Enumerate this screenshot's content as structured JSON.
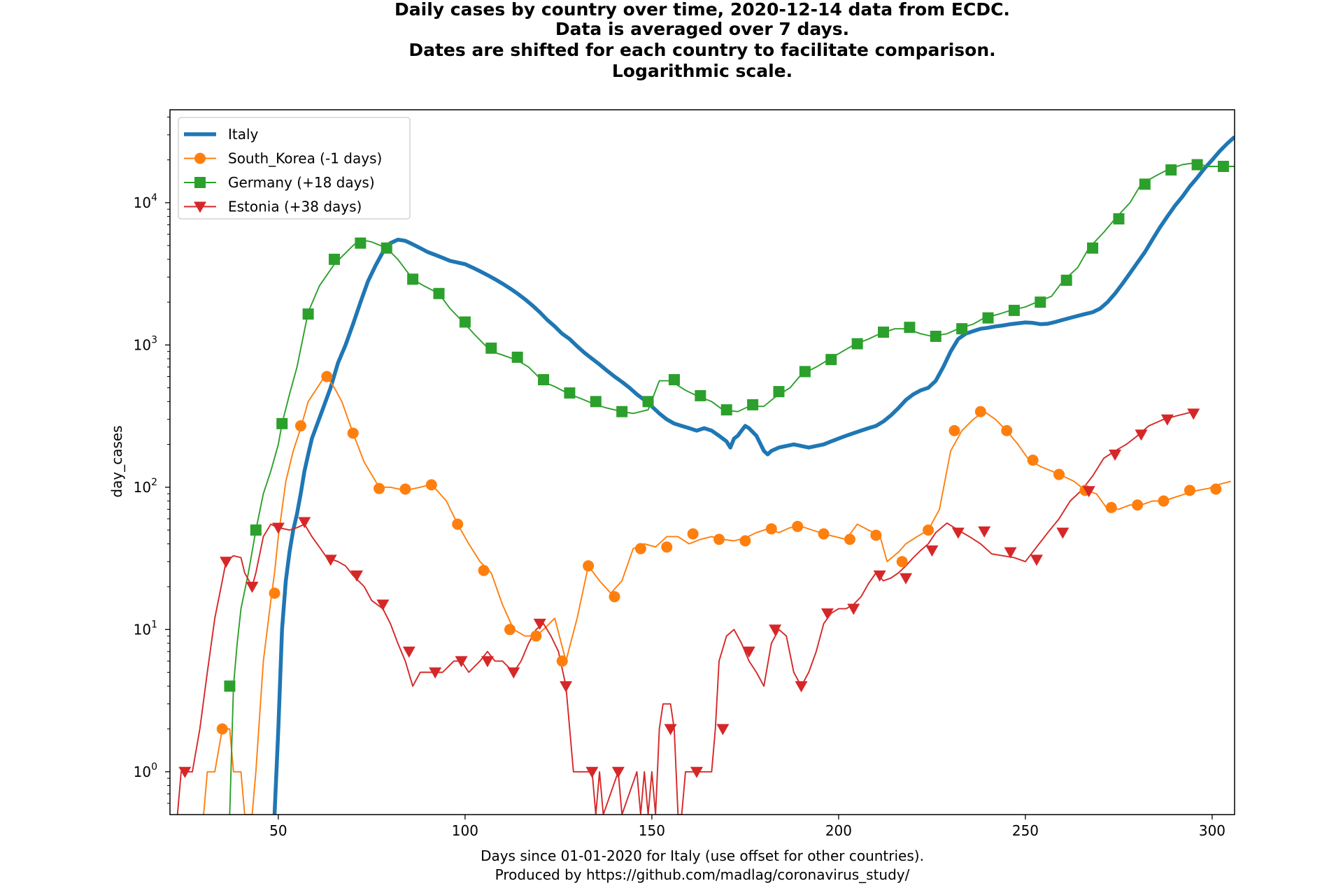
{
  "chart_data": {
    "type": "line",
    "title_lines": [
      "Daily cases by country over time, 2020-12-14 data from ECDC.",
      "Data is averaged over 7 days.",
      "Dates are shifted for each country to facilitate comparison.",
      "Logarithmic scale."
    ],
    "xlabel_lines": [
      "Days since 01-01-2020 for Italy (use offset for other countries).",
      "Produced by https://github.com/madlag/coronavirus_study/"
    ],
    "ylabel": "day_cases",
    "yscale": "log",
    "xlim": [
      21,
      306
    ],
    "ylim": [
      0.5,
      45000
    ],
    "x_ticks": [
      50,
      100,
      150,
      200,
      250,
      300
    ],
    "y_ticks": [
      {
        "value": 1,
        "base": "10",
        "exp": "0"
      },
      {
        "value": 10,
        "base": "10",
        "exp": "1"
      },
      {
        "value": 100,
        "base": "10",
        "exp": "2"
      },
      {
        "value": 1000,
        "base": "10",
        "exp": "3"
      },
      {
        "value": 10000,
        "base": "10",
        "exp": "4"
      }
    ],
    "legend_position": "top-left",
    "series": [
      {
        "name": "Italy",
        "color": "#1f77b4",
        "marker": "none",
        "x": [
          49,
          50,
          51,
          52,
          53,
          54,
          55,
          56,
          57,
          58,
          59,
          60,
          62,
          64,
          66,
          68,
          70,
          72,
          74,
          76,
          78,
          80,
          82,
          84,
          86,
          88,
          90,
          92,
          94,
          96,
          98,
          100,
          102,
          104,
          106,
          108,
          110,
          112,
          114,
          116,
          118,
          120,
          122,
          124,
          126,
          128,
          130,
          132,
          134,
          136,
          138,
          140,
          142,
          144,
          146,
          148,
          150,
          152,
          154,
          156,
          158,
          160,
          162,
          164,
          166,
          168,
          170,
          171,
          172,
          173,
          174,
          175,
          176,
          178,
          180,
          181,
          182,
          184,
          186,
          188,
          190,
          192,
          194,
          196,
          198,
          200,
          202,
          204,
          206,
          208,
          210,
          212,
          214,
          216,
          218,
          220,
          222,
          224,
          226,
          228,
          230,
          232,
          234,
          236,
          238,
          240,
          242,
          244,
          246,
          248,
          250,
          252,
          254,
          256,
          258,
          260,
          262,
          264,
          266,
          268,
          270,
          272,
          274,
          276,
          278,
          280,
          282,
          284,
          286,
          288,
          290,
          292,
          294,
          296,
          298,
          300,
          302,
          304,
          306
        ],
        "values": [
          0.5,
          2,
          10,
          22,
          35,
          50,
          65,
          90,
          130,
          170,
          220,
          260,
          360,
          500,
          750,
          1000,
          1400,
          2000,
          2800,
          3600,
          4500,
          5200,
          5500,
          5400,
          5100,
          4800,
          4500,
          4300,
          4100,
          3900,
          3800,
          3700,
          3500,
          3300,
          3100,
          2900,
          2700,
          2500,
          2300,
          2100,
          1900,
          1700,
          1500,
          1350,
          1200,
          1100,
          980,
          880,
          800,
          730,
          660,
          600,
          550,
          500,
          450,
          410,
          370,
          330,
          300,
          280,
          270,
          260,
          250,
          260,
          250,
          230,
          210,
          190,
          220,
          230,
          250,
          270,
          260,
          230,
          180,
          170,
          180,
          190,
          195,
          200,
          195,
          190,
          195,
          200,
          210,
          220,
          230,
          240,
          250,
          260,
          270,
          290,
          320,
          360,
          410,
          450,
          480,
          500,
          560,
          700,
          900,
          1100,
          1200,
          1250,
          1300,
          1320,
          1350,
          1370,
          1400,
          1420,
          1440,
          1430,
          1400,
          1410,
          1450,
          1500,
          1550,
          1600,
          1650,
          1700,
          1800,
          2000,
          2300,
          2700,
          3200,
          3800,
          4500,
          5500,
          6700,
          8000,
          9500,
          11000,
          13000,
          15000,
          17500,
          20000,
          23000,
          26000,
          29000
        ]
      },
      {
        "name": "South_Korea (-1 days)",
        "color": "#ff7f0e",
        "marker": "circle",
        "x": [
          30,
          31,
          33,
          35,
          37,
          38,
          40,
          41,
          43,
          44,
          46,
          48,
          49,
          50,
          52,
          54,
          56,
          58,
          60,
          62,
          63,
          65,
          67,
          70,
          73,
          77,
          80,
          84,
          88,
          91,
          95,
          98,
          101,
          104,
          107,
          110,
          113,
          116,
          119,
          121,
          124,
          127,
          130,
          133,
          136,
          139,
          142,
          145,
          148,
          151,
          154,
          157,
          160,
          163,
          166,
          169,
          172,
          175,
          178,
          181,
          184,
          187,
          190,
          193,
          196,
          199,
          202,
          205,
          208,
          211,
          213,
          216,
          218,
          221,
          224,
          227,
          230,
          233,
          236,
          239,
          242,
          245,
          248,
          251,
          254,
          257,
          260,
          263,
          266,
          269,
          272,
          275,
          278,
          281,
          284,
          287,
          290,
          293,
          296,
          299,
          302,
          305
        ],
        "values": [
          0.5,
          1,
          1,
          2,
          2,
          1,
          1,
          0.5,
          0.5,
          1,
          6,
          16,
          25,
          45,
          110,
          180,
          260,
          400,
          480,
          580,
          600,
          500,
          400,
          240,
          150,
          100,
          100,
          95,
          100,
          105,
          80,
          55,
          40,
          30,
          25,
          15,
          10,
          9,
          9,
          10,
          12,
          6,
          12,
          28,
          22,
          18,
          22,
          37,
          40,
          38,
          45,
          45,
          40,
          43,
          45,
          43,
          42,
          44,
          48,
          51,
          48,
          52,
          53,
          50,
          47,
          45,
          43,
          55,
          50,
          46,
          30,
          35,
          40,
          45,
          50,
          70,
          180,
          250,
          300,
          340,
          300,
          250,
          200,
          155,
          140,
          130,
          120,
          110,
          95,
          90,
          70,
          70,
          75,
          75,
          80,
          80,
          85,
          90,
          95,
          98,
          105,
          110
        ]
      },
      {
        "name": "Germany (+18 days)",
        "color": "#2ca02c",
        "marker": "square",
        "x": [
          37,
          38,
          39,
          40,
          42,
          44,
          46,
          48,
          50,
          51,
          53,
          55,
          58,
          61,
          65,
          70,
          72,
          75,
          79,
          82,
          86,
          89,
          93,
          96,
          100,
          103,
          107,
          110,
          114,
          117,
          121,
          124,
          128,
          131,
          135,
          138,
          142,
          145,
          149,
          152,
          155,
          159,
          162,
          166,
          169,
          173,
          176,
          180,
          183,
          187,
          190,
          194,
          197,
          201,
          204,
          208,
          211,
          215,
          218,
          222,
          225,
          229,
          232,
          236,
          239,
          243,
          246,
          250,
          253,
          257,
          260,
          264,
          267,
          271,
          274,
          278,
          281,
          285,
          288,
          292,
          295,
          299,
          302,
          306
        ],
        "values": [
          0.5,
          4,
          8,
          14,
          25,
          50,
          90,
          130,
          200,
          280,
          450,
          700,
          1700,
          2600,
          3700,
          5000,
          5500,
          5300,
          4800,
          4000,
          2900,
          2600,
          2300,
          1800,
          1400,
          1150,
          900,
          850,
          780,
          700,
          550,
          510,
          450,
          420,
          380,
          360,
          340,
          330,
          350,
          560,
          560,
          480,
          440,
          400,
          350,
          340,
          370,
          370,
          430,
          500,
          620,
          700,
          780,
          900,
          1000,
          1100,
          1200,
          1300,
          1300,
          1200,
          1150,
          1200,
          1300,
          1400,
          1550,
          1650,
          1750,
          1850,
          2000,
          2200,
          2800,
          3500,
          4800,
          6200,
          7700,
          10000,
          13500,
          15500,
          17000,
          18500,
          19000,
          18000,
          18000,
          18000
        ]
      },
      {
        "name": "Estonia (+38 days)",
        "color": "#d62728",
        "marker": "triangle",
        "x": [
          23,
          24,
          25,
          27,
          29,
          31,
          33,
          35,
          36,
          38,
          40,
          41,
          43,
          44,
          46,
          48,
          50,
          53,
          55,
          57,
          59,
          61,
          63,
          66,
          68,
          70,
          73,
          75,
          78,
          80,
          82,
          84,
          86,
          88,
          90,
          92,
          94,
          97,
          99,
          101,
          104,
          106,
          108,
          110,
          113,
          115,
          117,
          119,
          121,
          123,
          125,
          127,
          129,
          130,
          132,
          134,
          135,
          136,
          137,
          141,
          142,
          146,
          147,
          148,
          149,
          150,
          151,
          152,
          153,
          155,
          156,
          157,
          158,
          159,
          160,
          162,
          164,
          165,
          166,
          167,
          168,
          170,
          172,
          174,
          176,
          178,
          180,
          182,
          184,
          186,
          188,
          190,
          192,
          194,
          196,
          198,
          200,
          202,
          204,
          206,
          208,
          210,
          212,
          214,
          216,
          218,
          220,
          222,
          224,
          226,
          229,
          232,
          235,
          238,
          241,
          244,
          247,
          250,
          253,
          256,
          259,
          262,
          265,
          268,
          271,
          274,
          277,
          280,
          283,
          287,
          291,
          295
        ],
        "values": [
          0.5,
          1,
          1,
          1,
          2,
          5,
          12,
          22,
          30,
          33,
          32,
          25,
          20,
          25,
          45,
          55,
          52,
          50,
          52,
          55,
          45,
          38,
          32,
          30,
          28,
          24,
          20,
          16,
          14,
          11,
          8,
          6,
          4,
          5,
          5,
          5,
          5,
          6,
          6,
          5,
          6,
          7,
          6,
          6,
          5,
          6,
          8,
          10,
          11,
          9,
          7,
          4,
          1,
          1,
          1,
          1,
          0.5,
          1,
          0.5,
          1,
          0.5,
          1,
          0.5,
          1,
          0.5,
          1,
          0.5,
          2,
          3,
          3,
          2,
          0.5,
          0.5,
          1,
          1,
          1,
          1,
          1,
          1,
          2,
          6,
          9,
          10,
          8,
          6,
          5,
          4,
          8,
          10,
          9,
          5,
          4,
          5,
          7,
          11,
          13,
          14,
          14,
          15,
          17,
          21,
          25,
          22,
          23,
          25,
          28,
          32,
          36,
          40,
          48,
          56,
          50,
          45,
          40,
          34,
          33,
          32,
          30,
          38,
          48,
          60,
          80,
          95,
          120,
          160,
          180,
          200,
          230,
          270,
          300,
          320,
          340
        ]
      }
    ],
    "markers": [
      {
        "series": 1,
        "x": [
          35,
          49,
          56,
          63,
          70,
          77,
          84,
          91,
          98,
          105,
          112,
          119,
          126,
          133,
          140,
          147,
          154,
          161,
          168,
          175,
          182,
          189,
          196,
          203,
          210,
          217,
          224,
          231,
          238,
          245,
          252,
          259,
          266,
          273,
          280,
          287,
          294,
          301
        ],
        "values": [
          2,
          18,
          270,
          600,
          240,
          98,
          97,
          104,
          55,
          26,
          10,
          9,
          6,
          28,
          17,
          37,
          38,
          47,
          43,
          42,
          51,
          53,
          47,
          43,
          46,
          30,
          50,
          250,
          340,
          250,
          155,
          123,
          95,
          72,
          75,
          80,
          95,
          97
        ]
      },
      {
        "series": 2,
        "x": [
          37,
          44,
          51,
          58,
          65,
          72,
          79,
          86,
          93,
          100,
          107,
          114,
          121,
          128,
          135,
          142,
          149,
          156,
          163,
          170,
          177,
          184,
          191,
          198,
          205,
          212,
          219,
          226,
          233,
          240,
          247,
          254,
          261,
          268,
          275,
          282,
          289,
          296,
          303
        ],
        "values": [
          4,
          50,
          280,
          1650,
          4000,
          5200,
          4800,
          2900,
          2300,
          1450,
          950,
          820,
          570,
          460,
          400,
          340,
          400,
          570,
          440,
          350,
          380,
          470,
          650,
          790,
          1020,
          1230,
          1330,
          1150,
          1300,
          1550,
          1750,
          2000,
          2850,
          4800,
          7700,
          13500,
          17000,
          18500,
          18000
        ]
      },
      {
        "series": 3,
        "x": [
          25,
          36,
          43,
          50,
          57,
          64,
          71,
          78,
          85,
          92,
          99,
          106,
          113,
          120,
          127,
          134,
          141,
          155,
          162,
          169,
          176,
          183,
          190,
          197,
          204,
          211,
          218,
          225,
          232,
          239,
          246,
          253,
          260,
          267,
          274,
          281,
          288,
          295
        ],
        "values": [
          1,
          30,
          20,
          52,
          57,
          31,
          24,
          15,
          7,
          5,
          6,
          6,
          5,
          11,
          4,
          1,
          1,
          2,
          1,
          2,
          7,
          10,
          4,
          13,
          14,
          24,
          23,
          36,
          48,
          49,
          35,
          31,
          48,
          94,
          170,
          235,
          300,
          330
        ]
      }
    ]
  }
}
